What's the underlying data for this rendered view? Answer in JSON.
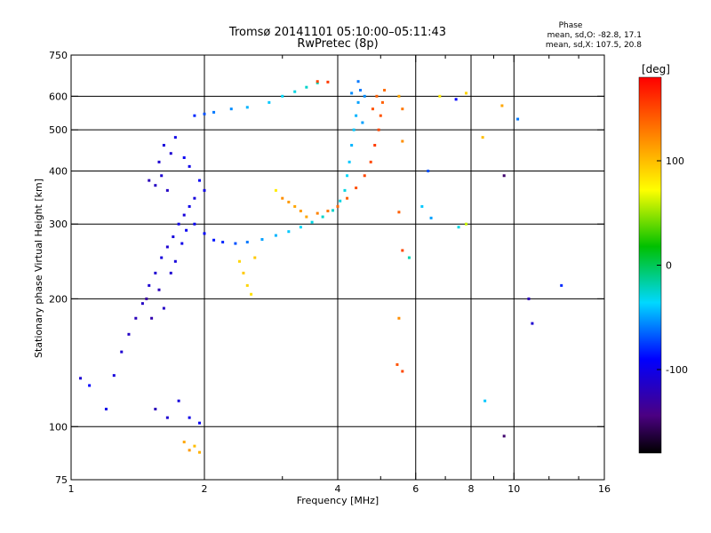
{
  "chart_data": {
    "type": "scatter",
    "title": "Tromsø 20141101 05:10:00–05:11:43",
    "subtitle": "RwPretec (8p)",
    "xlabel": "Frequency [MHz]",
    "ylabel": "Stationary phase Virtual Height [km]",
    "x_scale": "log",
    "y_scale": "log",
    "xlim": [
      1,
      16
    ],
    "ylim": [
      75,
      750
    ],
    "x_ticks": [
      1,
      2,
      4,
      6,
      8,
      10,
      16
    ],
    "x_tick_labels": [
      "1",
      "2",
      "4",
      "6",
      "8",
      "10",
      "16"
    ],
    "x_minor_ticks": [
      3,
      5,
      7,
      9,
      12,
      14
    ],
    "x_gridlines": [
      2,
      4,
      6,
      8,
      10
    ],
    "y_ticks": [
      75,
      100,
      200,
      300,
      400,
      500,
      600,
      750
    ],
    "y_tick_labels": [
      "75",
      "100",
      "200",
      "300",
      "400",
      "500",
      "600",
      "750"
    ],
    "y_gridlines": [
      100,
      200,
      300,
      400,
      500,
      600
    ],
    "grid": true,
    "legend_title": "Phase",
    "stats_lines": [
      "mean, sd,O: -82.8, 17.1",
      "mean, sd,X: 107.5, 20.8"
    ],
    "colorbar": {
      "label": "[deg]",
      "range": [
        -180,
        180
      ],
      "ticks": [
        100,
        0,
        -100
      ],
      "tick_labels": [
        "100",
        "0",
        "-100"
      ],
      "colormap": "rainbow"
    },
    "series": [
      {
        "points": [
          [
            1.05,
            130,
            -110
          ],
          [
            1.1,
            125,
            -90
          ],
          [
            1.2,
            110,
            -100
          ],
          [
            1.25,
            132,
            -105
          ],
          [
            1.3,
            150,
            -110
          ],
          [
            1.35,
            165,
            -115
          ],
          [
            1.4,
            180,
            -120
          ],
          [
            1.45,
            195,
            -115
          ],
          [
            1.5,
            215,
            -110
          ],
          [
            1.55,
            230,
            -110
          ],
          [
            1.6,
            250,
            -105
          ],
          [
            1.65,
            265,
            -110
          ],
          [
            1.7,
            280,
            -105
          ],
          [
            1.75,
            300,
            -100
          ],
          [
            1.8,
            315,
            -105
          ],
          [
            1.85,
            330,
            -100
          ],
          [
            1.9,
            345,
            -105
          ],
          [
            1.48,
            200,
            -130
          ],
          [
            1.52,
            180,
            -125
          ],
          [
            1.58,
            210,
            -120
          ],
          [
            1.62,
            190,
            -115
          ],
          [
            1.68,
            230,
            -110
          ],
          [
            1.72,
            245,
            -105
          ],
          [
            1.78,
            270,
            -100
          ],
          [
            1.82,
            290,
            -95
          ],
          [
            1.5,
            380,
            -120
          ],
          [
            1.55,
            370,
            -115
          ],
          [
            1.6,
            390,
            -110
          ],
          [
            1.65,
            360,
            -115
          ],
          [
            1.58,
            420,
            -110
          ],
          [
            1.62,
            460,
            -105
          ],
          [
            1.68,
            440,
            -110
          ],
          [
            1.72,
            480,
            -100
          ],
          [
            1.8,
            430,
            -95
          ],
          [
            1.85,
            410,
            -100
          ],
          [
            1.95,
            380,
            -95
          ],
          [
            2.0,
            360,
            -100
          ],
          [
            1.9,
            300,
            -95
          ],
          [
            2.0,
            285,
            -90
          ],
          [
            2.1,
            275,
            -85
          ],
          [
            2.2,
            272,
            -80
          ],
          [
            2.35,
            270,
            -70
          ],
          [
            2.5,
            272,
            -60
          ],
          [
            2.7,
            276,
            -50
          ],
          [
            2.9,
            282,
            -45
          ],
          [
            3.1,
            288,
            -40
          ],
          [
            3.3,
            295,
            -35
          ],
          [
            3.5,
            303,
            -30
          ],
          [
            3.7,
            312,
            -25
          ],
          [
            3.9,
            323,
            -25
          ],
          [
            4.05,
            340,
            -30
          ],
          [
            4.15,
            360,
            -30
          ],
          [
            4.2,
            390,
            -35
          ],
          [
            4.25,
            420,
            -40
          ],
          [
            4.3,
            460,
            -45
          ],
          [
            4.35,
            500,
            -40
          ],
          [
            4.4,
            540,
            -45
          ],
          [
            4.45,
            580,
            -50
          ],
          [
            4.3,
            610,
            -55
          ],
          [
            4.5,
            620,
            -60
          ],
          [
            4.45,
            650,
            -60
          ],
          [
            4.6,
            600,
            -55
          ],
          [
            4.55,
            520,
            -50
          ],
          [
            1.9,
            540,
            -80
          ],
          [
            2.0,
            545,
            -70
          ],
          [
            2.1,
            550,
            -60
          ],
          [
            2.3,
            560,
            -55
          ],
          [
            2.5,
            565,
            -45
          ],
          [
            2.8,
            580,
            -40
          ],
          [
            3.0,
            600,
            -35
          ],
          [
            3.2,
            615,
            -30
          ],
          [
            3.4,
            630,
            -25
          ],
          [
            3.6,
            645,
            -20
          ],
          [
            1.55,
            110,
            -120
          ],
          [
            1.65,
            105,
            -110
          ],
          [
            1.75,
            115,
            -105
          ],
          [
            1.85,
            105,
            -100
          ],
          [
            1.95,
            102,
            -95
          ]
        ]
      },
      {
        "points": [
          [
            3.0,
            345,
            120
          ],
          [
            3.1,
            338,
            115
          ],
          [
            3.2,
            330,
            110
          ],
          [
            3.3,
            322,
            115
          ],
          [
            2.9,
            360,
            80
          ],
          [
            3.4,
            312,
            110
          ],
          [
            3.6,
            318,
            125
          ],
          [
            3.8,
            322,
            130
          ],
          [
            4.0,
            330,
            135
          ],
          [
            4.2,
            345,
            140
          ],
          [
            4.4,
            365,
            145
          ],
          [
            4.6,
            390,
            150
          ],
          [
            4.75,
            420,
            150
          ],
          [
            4.85,
            460,
            155
          ],
          [
            4.95,
            500,
            150
          ],
          [
            5.0,
            540,
            145
          ],
          [
            5.05,
            580,
            140
          ],
          [
            5.1,
            620,
            135
          ],
          [
            4.9,
            600,
            140
          ],
          [
            4.8,
            560,
            145
          ],
          [
            2.4,
            245,
            90
          ],
          [
            2.45,
            230,
            95
          ],
          [
            2.5,
            215,
            90
          ],
          [
            2.55,
            205,
            85
          ],
          [
            2.6,
            250,
            95
          ],
          [
            1.8,
            92,
            110
          ],
          [
            1.85,
            88,
            115
          ],
          [
            1.9,
            90,
            100
          ],
          [
            1.95,
            87,
            105
          ],
          [
            3.6,
            650,
            150
          ],
          [
            3.8,
            648,
            155
          ],
          [
            5.5,
            600,
            110
          ],
          [
            5.6,
            560,
            130
          ],
          [
            5.6,
            470,
            120
          ],
          [
            5.5,
            320,
            140
          ],
          [
            5.6,
            260,
            150
          ],
          [
            5.5,
            180,
            120
          ],
          [
            5.45,
            140,
            145
          ],
          [
            5.6,
            135,
            150
          ]
        ]
      },
      {
        "points": [
          [
            6.2,
            330,
            -40
          ],
          [
            6.5,
            310,
            -50
          ],
          [
            7.5,
            295,
            -30
          ],
          [
            7.8,
            300,
            60
          ],
          [
            8.5,
            480,
            100
          ],
          [
            9.4,
            570,
            110
          ],
          [
            9.5,
            390,
            -150
          ],
          [
            9.5,
            95,
            -150
          ],
          [
            10.2,
            530,
            -60
          ],
          [
            10.8,
            200,
            -120
          ],
          [
            11.0,
            175,
            -110
          ],
          [
            12.8,
            215,
            -80
          ],
          [
            8.6,
            115,
            -40
          ],
          [
            6.8,
            600,
            80
          ],
          [
            7.4,
            590,
            -90
          ],
          [
            7.8,
            610,
            90
          ],
          [
            5.8,
            250,
            -20
          ],
          [
            6.4,
            400,
            -70
          ]
        ]
      }
    ]
  }
}
